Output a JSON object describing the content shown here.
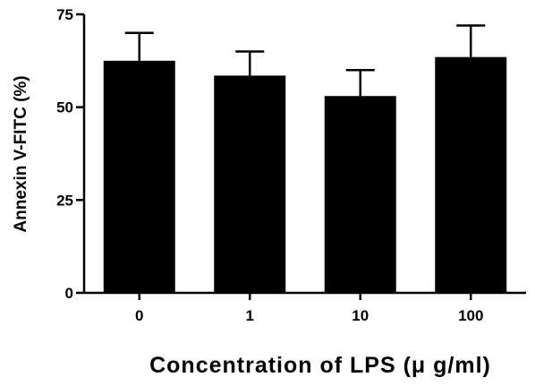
{
  "chart_data": {
    "type": "bar",
    "categories": [
      "0",
      "1",
      "10",
      "100"
    ],
    "values": [
      62.5,
      58.5,
      53,
      63.5
    ],
    "error_upper": [
      70,
      65,
      60,
      72
    ],
    "ylabel": "Annexin V-FITC (%)",
    "xlabel": "Concentration of LPS (μ g/ml)",
    "ylim": [
      0,
      75
    ],
    "yticks": [
      0,
      25,
      50,
      75
    ],
    "grid": false,
    "legend": "none",
    "bar_color": "#000000"
  }
}
